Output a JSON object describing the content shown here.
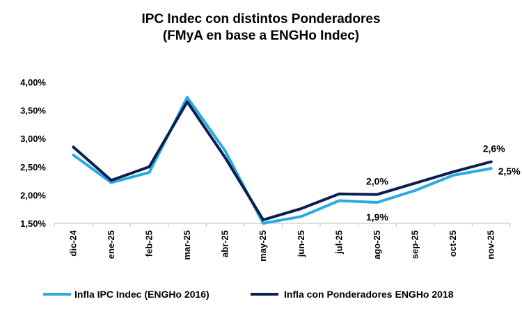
{
  "chart_data": {
    "type": "line",
    "title": "IPC Indec con distintos Ponderadores",
    "subtitle": "(FMyA en base a ENGHo Indec)",
    "categories": [
      "dic-24",
      "ene-25",
      "feb-25",
      "mar-25",
      "abr-25",
      "may-25",
      "jun-25",
      "jul-25",
      "ago-25",
      "sep-25",
      "oct-25",
      "nov-25"
    ],
    "ylim": [
      1.5,
      4.0
    ],
    "yticks": [
      1.5,
      2.0,
      2.5,
      3.0,
      3.5,
      4.0
    ],
    "ytick_labels": [
      "1,50%",
      "2,00%",
      "2,50%",
      "3,00%",
      "3,50%",
      "4,00%"
    ],
    "grid": false,
    "legend_position": "bottom",
    "series": [
      {
        "name": "Infla IPC Indec (ENGHo 2016)",
        "color": "#29abe2",
        "values": [
          2.71,
          2.22,
          2.4,
          3.73,
          2.78,
          1.5,
          1.62,
          1.9,
          1.87,
          2.08,
          2.35,
          2.47
        ]
      },
      {
        "name": "Infla con Ponderadores ENGHo 2018",
        "color": "#0b1f4f",
        "values": [
          2.85,
          2.26,
          2.5,
          3.65,
          2.66,
          1.56,
          1.76,
          2.02,
          2.01,
          2.21,
          2.41,
          2.59
        ]
      }
    ],
    "annotations": [
      {
        "text": "2,0%",
        "series": 1,
        "index": 8,
        "placement": "above"
      },
      {
        "text": "1,9%",
        "series": 0,
        "index": 8,
        "placement": "below"
      },
      {
        "text": "2,6%",
        "series": 1,
        "index": 11,
        "placement": "above"
      },
      {
        "text": "2,5%",
        "series": 0,
        "index": 11,
        "placement": "right"
      }
    ]
  }
}
